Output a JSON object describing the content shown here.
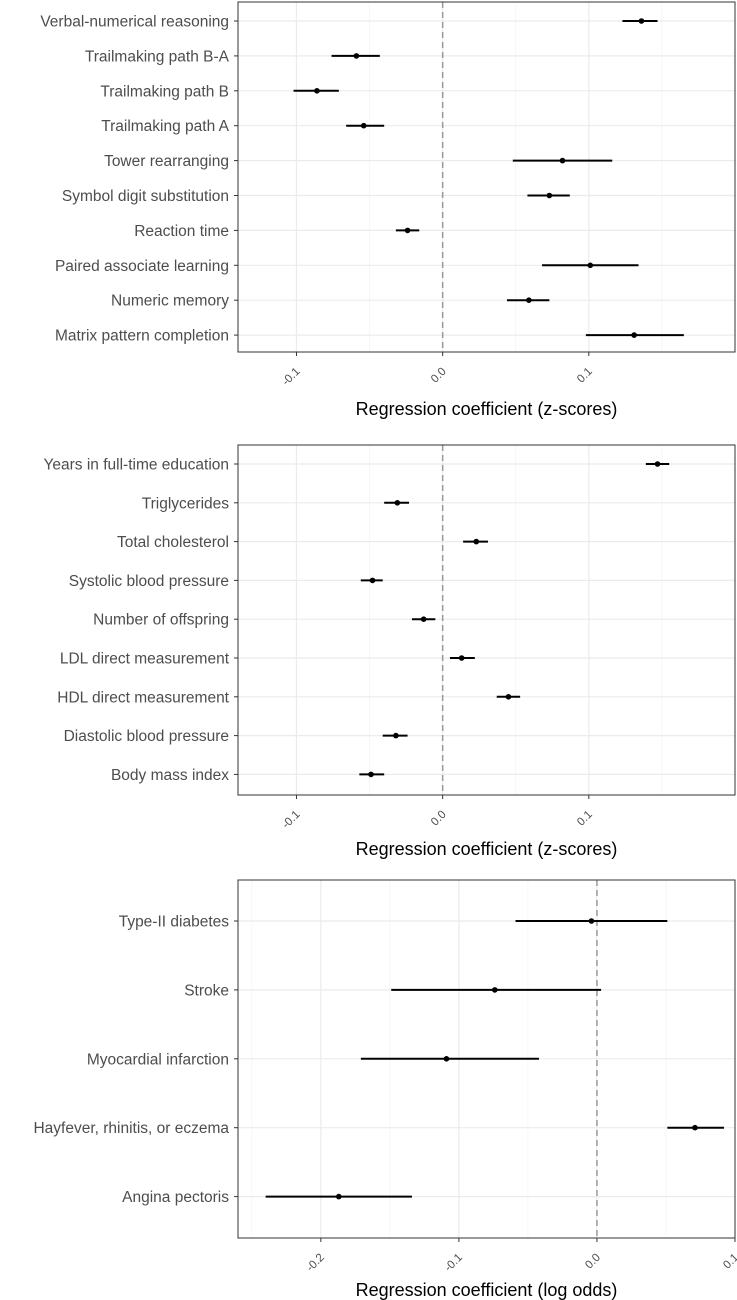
{
  "chart_data": [
    {
      "type": "forest",
      "xlabel": "Regression coefficient (z-scores)",
      "xlim": [
        -0.14,
        0.2
      ],
      "xticks": [
        -0.1,
        0.0,
        0.1
      ],
      "xtick_labels": [
        "-0.1",
        "0.0",
        "0.1"
      ],
      "reference_line": 0.0,
      "grid": true,
      "rows": [
        {
          "label": "Verbal-numerical reasoning",
          "estimate": 0.136,
          "lower": 0.123,
          "upper": 0.147
        },
        {
          "label": "Trailmaking path B-A",
          "estimate": -0.059,
          "lower": -0.076,
          "upper": -0.043
        },
        {
          "label": "Trailmaking path B",
          "estimate": -0.086,
          "lower": -0.102,
          "upper": -0.071
        },
        {
          "label": "Trailmaking path A",
          "estimate": -0.054,
          "lower": -0.066,
          "upper": -0.04
        },
        {
          "label": "Tower rearranging",
          "estimate": 0.082,
          "lower": 0.048,
          "upper": 0.116
        },
        {
          "label": "Symbol digit substitution",
          "estimate": 0.073,
          "lower": 0.058,
          "upper": 0.087
        },
        {
          "label": "Reaction time",
          "estimate": -0.024,
          "lower": -0.032,
          "upper": -0.016
        },
        {
          "label": "Paired associate learning",
          "estimate": 0.101,
          "lower": 0.068,
          "upper": 0.134
        },
        {
          "label": "Numeric memory",
          "estimate": 0.059,
          "lower": 0.044,
          "upper": 0.073
        },
        {
          "label": "Matrix pattern completion",
          "estimate": 0.131,
          "lower": 0.098,
          "upper": 0.165
        }
      ]
    },
    {
      "type": "forest",
      "xlabel": "Regression coefficient (z-scores)",
      "xlim": [
        -0.14,
        0.2
      ],
      "xticks": [
        -0.1,
        0.0,
        0.1
      ],
      "xtick_labels": [
        "-0.1",
        "0.0",
        "0.1"
      ],
      "reference_line": 0.0,
      "grid": true,
      "rows": [
        {
          "label": "Years in full-time education",
          "estimate": 0.147,
          "lower": 0.139,
          "upper": 0.155
        },
        {
          "label": "Triglycerides",
          "estimate": -0.031,
          "lower": -0.04,
          "upper": -0.023
        },
        {
          "label": "Total cholesterol",
          "estimate": 0.023,
          "lower": 0.014,
          "upper": 0.031
        },
        {
          "label": "Systolic blood pressure",
          "estimate": -0.048,
          "lower": -0.056,
          "upper": -0.041
        },
        {
          "label": "Number of offspring",
          "estimate": -0.013,
          "lower": -0.021,
          "upper": -0.005
        },
        {
          "label": "LDL direct measurement",
          "estimate": 0.013,
          "lower": 0.005,
          "upper": 0.022
        },
        {
          "label": "HDL direct measurement",
          "estimate": 0.045,
          "lower": 0.037,
          "upper": 0.053
        },
        {
          "label": "Diastolic blood pressure",
          "estimate": -0.032,
          "lower": -0.041,
          "upper": -0.024
        },
        {
          "label": "Body mass index",
          "estimate": -0.049,
          "lower": -0.057,
          "upper": -0.04
        }
      ]
    },
    {
      "type": "forest",
      "xlabel": "Regression coefficient (log odds)",
      "xlim": [
        -0.26,
        0.1
      ],
      "xticks": [
        -0.2,
        -0.1,
        0.0,
        0.1
      ],
      "xtick_labels": [
        "-0.2",
        "-0.1",
        "0.0",
        "0.1"
      ],
      "reference_line": 0.0,
      "grid": true,
      "rows": [
        {
          "label": "Type-II diabetes",
          "estimate": -0.004,
          "lower": -0.059,
          "upper": 0.051
        },
        {
          "label": "Stroke",
          "estimate": -0.074,
          "lower": -0.149,
          "upper": 0.003
        },
        {
          "label": "Myocardial infarction",
          "estimate": -0.109,
          "lower": -0.171,
          "upper": -0.042
        },
        {
          "label": "Hayfever, rhinitis, or eczema",
          "estimate": 0.071,
          "lower": 0.051,
          "upper": 0.092
        },
        {
          "label": "Angina pectoris",
          "estimate": -0.187,
          "lower": -0.24,
          "upper": -0.134
        }
      ]
    }
  ]
}
